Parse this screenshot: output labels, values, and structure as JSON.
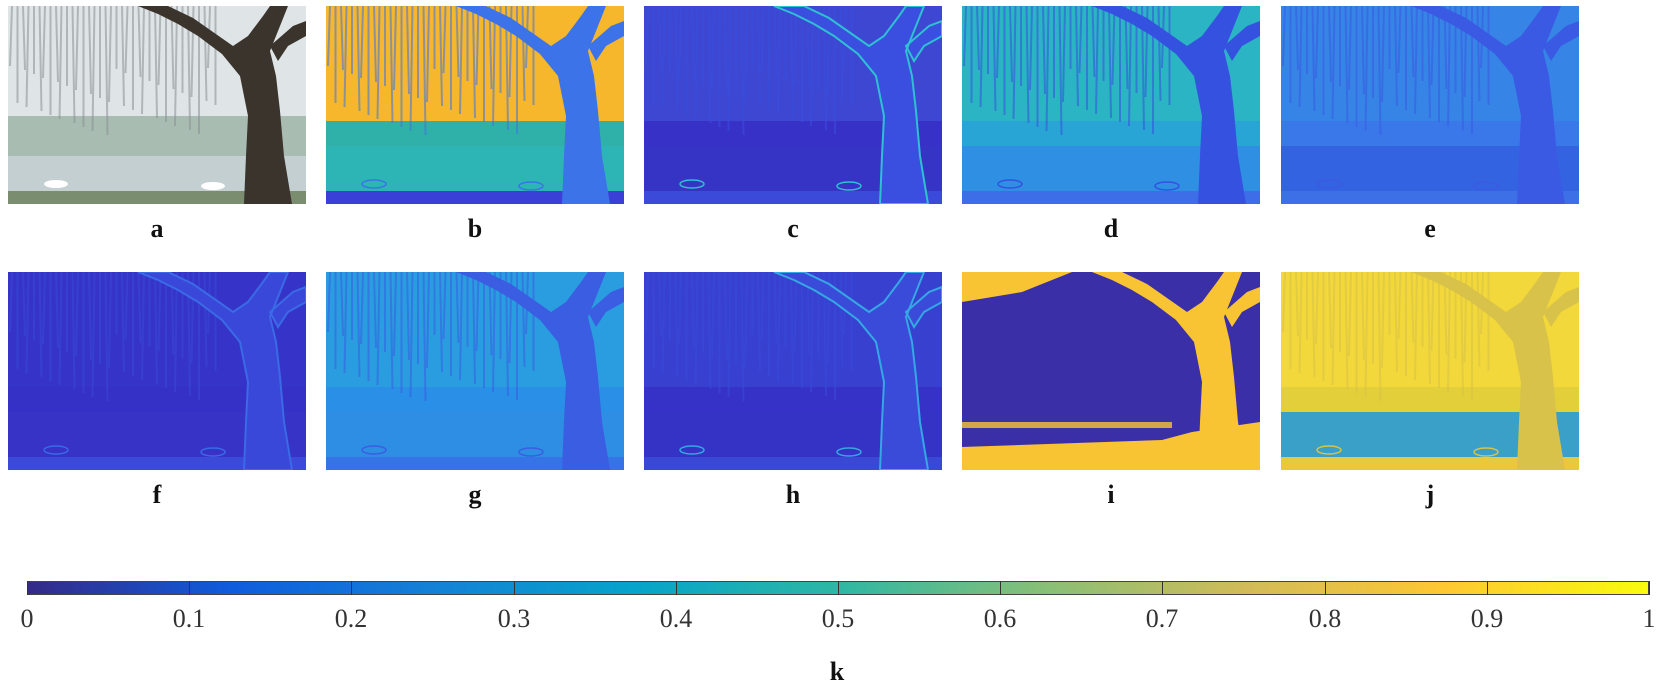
{
  "figure": {
    "panels": [
      {
        "id": "a",
        "label": "a",
        "kind": "photo"
      },
      {
        "id": "b",
        "label": "b",
        "kind": "map",
        "bg": "#2fb0a8",
        "sky": "#f6b72d",
        "tree": "#3c73e8",
        "water": "#2cb5b4",
        "ground": "#3a3fd8"
      },
      {
        "id": "c",
        "label": "c",
        "kind": "map",
        "bg": "#3731c8",
        "sky": "#3d47d2",
        "tree": "#3a4fdf",
        "water": "#3634c4",
        "ground": "#3b4ad9",
        "edge": "#2ec1d2"
      },
      {
        "id": "d",
        "label": "d",
        "kind": "map",
        "bg": "#28a5d4",
        "sky": "#2bb4c3",
        "tree": "#3551e0",
        "water": "#2f8fe3",
        "ground": "#3d6ee8"
      },
      {
        "id": "e",
        "label": "e",
        "kind": "map",
        "bg": "#3a78ea",
        "sky": "#3584e6",
        "tree": "#3b5ae3",
        "water": "#3463e1",
        "ground": "#3d6fe6"
      },
      {
        "id": "f",
        "label": "f",
        "kind": "map",
        "bg": "#3530c6",
        "sky": "#3634c8",
        "tree": "#3948d8",
        "water": "#3633c6",
        "ground": "#3b4ad8",
        "edge": "#3a6ae6"
      },
      {
        "id": "g",
        "label": "g",
        "kind": "map",
        "bg": "#2a8fe6",
        "sky": "#2a9de0",
        "tree": "#3a5de2",
        "water": "#2d8ee3",
        "ground": "#3573e6"
      },
      {
        "id": "h",
        "label": "h",
        "kind": "map",
        "bg": "#3632c7",
        "sky": "#3740cf",
        "tree": "#3a4bda",
        "water": "#3533c5",
        "ground": "#3a48d6",
        "edge": "#35a8e3"
      },
      {
        "id": "i",
        "label": "i",
        "kind": "mask",
        "bg": "#3b2fa8",
        "fg": "#f9c433"
      },
      {
        "id": "j",
        "label": "j",
        "kind": "map",
        "bg": "#e3cf3a",
        "sky": "#f2d83a",
        "tree": "#d8c24a",
        "water": "#3aa0c7",
        "ground": "#e8c93e"
      }
    ],
    "colorbar": {
      "ticks": [
        "0",
        "0.1",
        "0.2",
        "0.3",
        "0.4",
        "0.5",
        "0.6",
        "0.7",
        "0.8",
        "0.9",
        "1"
      ],
      "range": [
        0,
        1
      ],
      "colormap": "parula",
      "colors": [
        "#352a87",
        "#0f5cdd",
        "#1481d6",
        "#06a4ca",
        "#2eb7a4",
        "#87bf77",
        "#d1bb59",
        "#fec832",
        "#f9fb0e"
      ],
      "label": "k"
    }
  }
}
